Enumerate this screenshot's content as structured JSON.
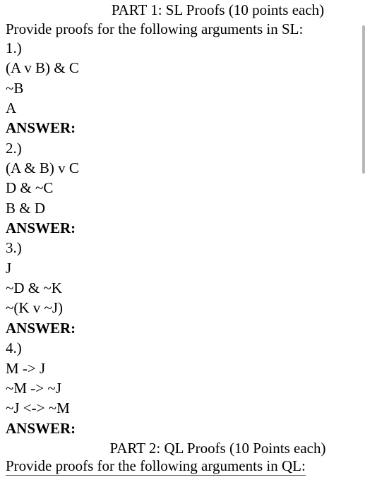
{
  "part1": {
    "title": "PART 1: SL Proofs (10 points each)",
    "instruction": "Provide proofs for the following arguments in SL:",
    "problems": [
      {
        "num": "1.)",
        "lines": [
          "(A v B) & C",
          "~B",
          "A"
        ],
        "answer_label": "ANSWER:"
      },
      {
        "num": "2.)",
        "lines": [
          "(A & B) v C",
          "D & ~C",
          "B & D"
        ],
        "answer_label": "ANSWER:"
      },
      {
        "num": "3.)",
        "lines": [
          "J",
          "~D & ~K",
          "~(K v ~J)"
        ],
        "answer_label": "ANSWER:"
      },
      {
        "num": "4.)",
        "lines": [
          "M -> J",
          "~M -> ~J",
          "~J <-> ~M"
        ],
        "answer_label": "ANSWER:"
      }
    ]
  },
  "part2": {
    "title": "PART 2: QL Proofs (10 Points each)",
    "instruction": "Provide proofs for the following arguments in QL:"
  }
}
